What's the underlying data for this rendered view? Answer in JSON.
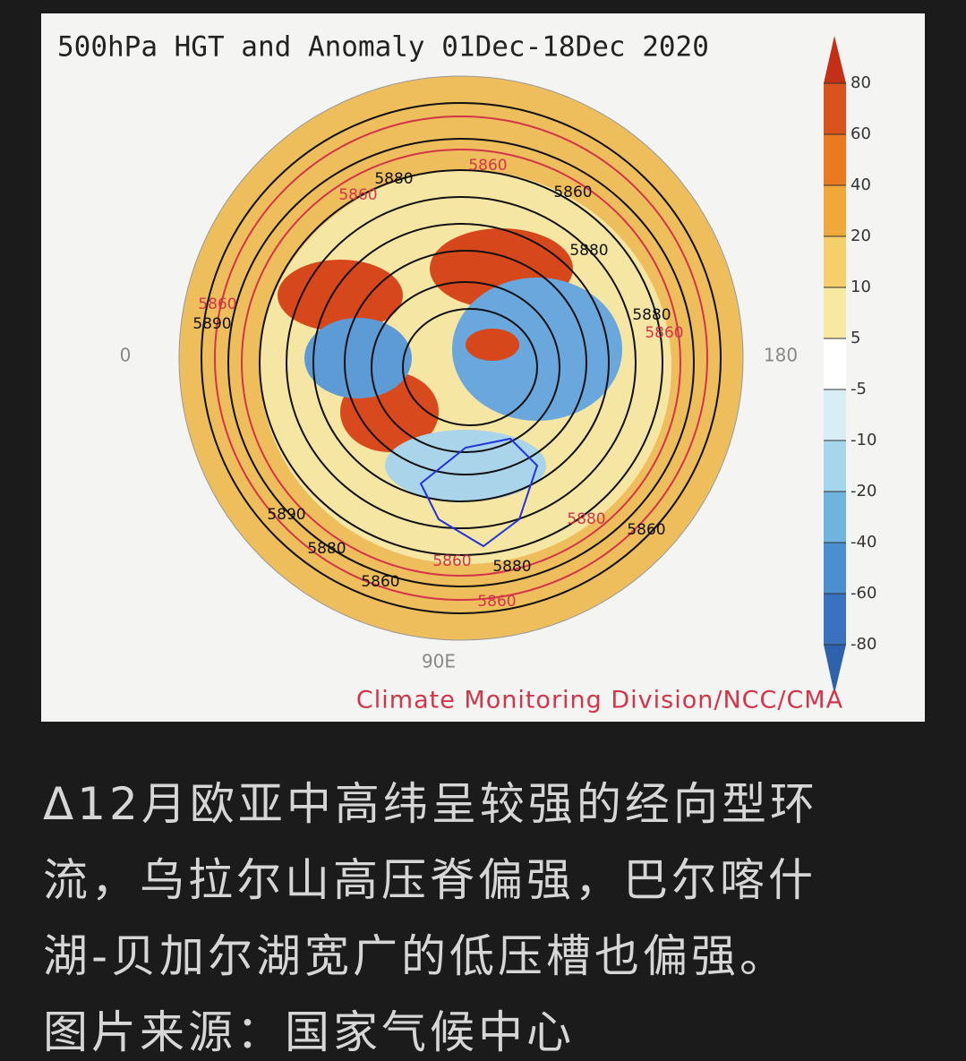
{
  "figure": {
    "title": "500hPa HGT and Anomaly 01Dec-18Dec 2020",
    "colorbar_ticks": [
      80,
      60,
      40,
      20,
      10,
      5,
      -5,
      -10,
      -20,
      -40,
      -60,
      -80
    ],
    "longitude_labels": [
      "0",
      "180",
      "90E"
    ],
    "contour_labels": [
      5880,
      5860,
      5860,
      5860,
      5880,
      5860,
      5890,
      5880,
      5860,
      5890,
      5880,
      5860,
      5880,
      5880,
      5860,
      5860,
      5860
    ],
    "credit": "Climate Monitoring Division/NCC/CMA"
  },
  "caption": {
    "lines": [
      "Δ12月欧亚中高纬呈较强的经向型环",
      "流，乌拉尔山高压脊偏强，巴尔喀什",
      "湖-贝加尔湖宽广的低压槽也偏强。",
      "图片来源：国家气候中心"
    ]
  }
}
